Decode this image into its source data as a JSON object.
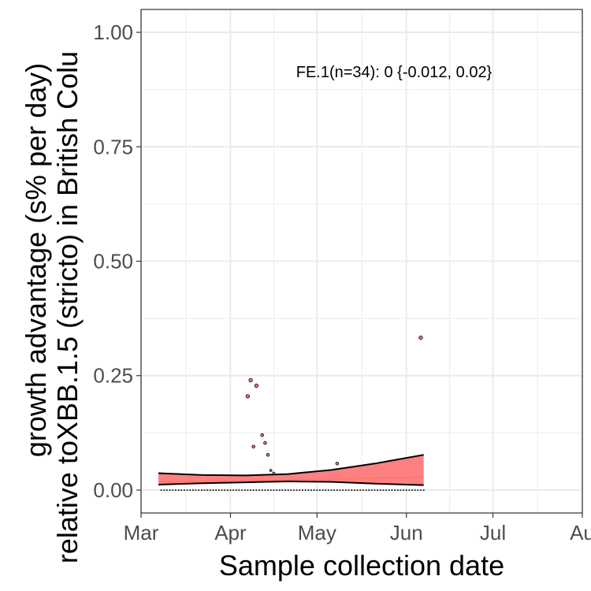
{
  "chart_data": {
    "type": "scatter",
    "xlabel": "Sample collection date",
    "ylabel_line1": "growth advantage (s% per day)",
    "ylabel_line2": "relative toXBB.1.5 (stricto) in British Colu",
    "annotation": "FE.1(n=34): 0 {-0.012, 0.02}",
    "xlim": [
      "2023-03-01",
      "2023-08-01"
    ],
    "ylim": [
      -0.05,
      1.05
    ],
    "x_ticks": [
      {
        "date": "2023-03-01",
        "label": "Mar"
      },
      {
        "date": "2023-04-01",
        "label": "Apr"
      },
      {
        "date": "2023-05-01",
        "label": "May"
      },
      {
        "date": "2023-06-01",
        "label": "Jun"
      },
      {
        "date": "2023-07-01",
        "label": "Jul"
      },
      {
        "date": "2023-08-01",
        "label": "Au"
      }
    ],
    "y_ticks": [
      {
        "value": 0.0,
        "label": "0.00"
      },
      {
        "value": 0.25,
        "label": "0.25"
      },
      {
        "value": 0.5,
        "label": "0.50"
      },
      {
        "value": 0.75,
        "label": "0.75"
      },
      {
        "value": 1.0,
        "label": "1.00"
      }
    ],
    "grid": true,
    "colors": {
      "ribbon": "#ff8080",
      "fit_line": "#f8766d",
      "points": "#f8766d",
      "bounds": "#000000"
    },
    "points": [
      {
        "x": "2023-04-08",
        "y": 0.24
      },
      {
        "x": "2023-04-10",
        "y": 0.228
      },
      {
        "x": "2023-04-07",
        "y": 0.205
      },
      {
        "x": "2023-04-12",
        "y": 0.12
      },
      {
        "x": "2023-04-13",
        "y": 0.103
      },
      {
        "x": "2023-04-09",
        "y": 0.095
      },
      {
        "x": "2023-04-14",
        "y": 0.077
      },
      {
        "x": "2023-04-15",
        "y": 0.043
      },
      {
        "x": "2023-04-16",
        "y": 0.037
      },
      {
        "x": "2023-05-08",
        "y": 0.058
      },
      {
        "x": "2023-06-06",
        "y": 0.333
      }
    ],
    "zero_points": {
      "start": "2023-03-08",
      "end": "2023-06-07"
    },
    "fit": {
      "x": [
        "2023-03-07",
        "2023-03-22",
        "2023-04-06",
        "2023-04-21",
        "2023-05-06",
        "2023-05-21",
        "2023-06-07"
      ],
      "mid": [
        0.018,
        0.02,
        0.021,
        0.022,
        0.024,
        0.026,
        0.028
      ],
      "upper": [
        0.037,
        0.033,
        0.032,
        0.035,
        0.044,
        0.058,
        0.077
      ],
      "lower": [
        0.012,
        0.015,
        0.017,
        0.019,
        0.018,
        0.014,
        0.011
      ]
    }
  }
}
